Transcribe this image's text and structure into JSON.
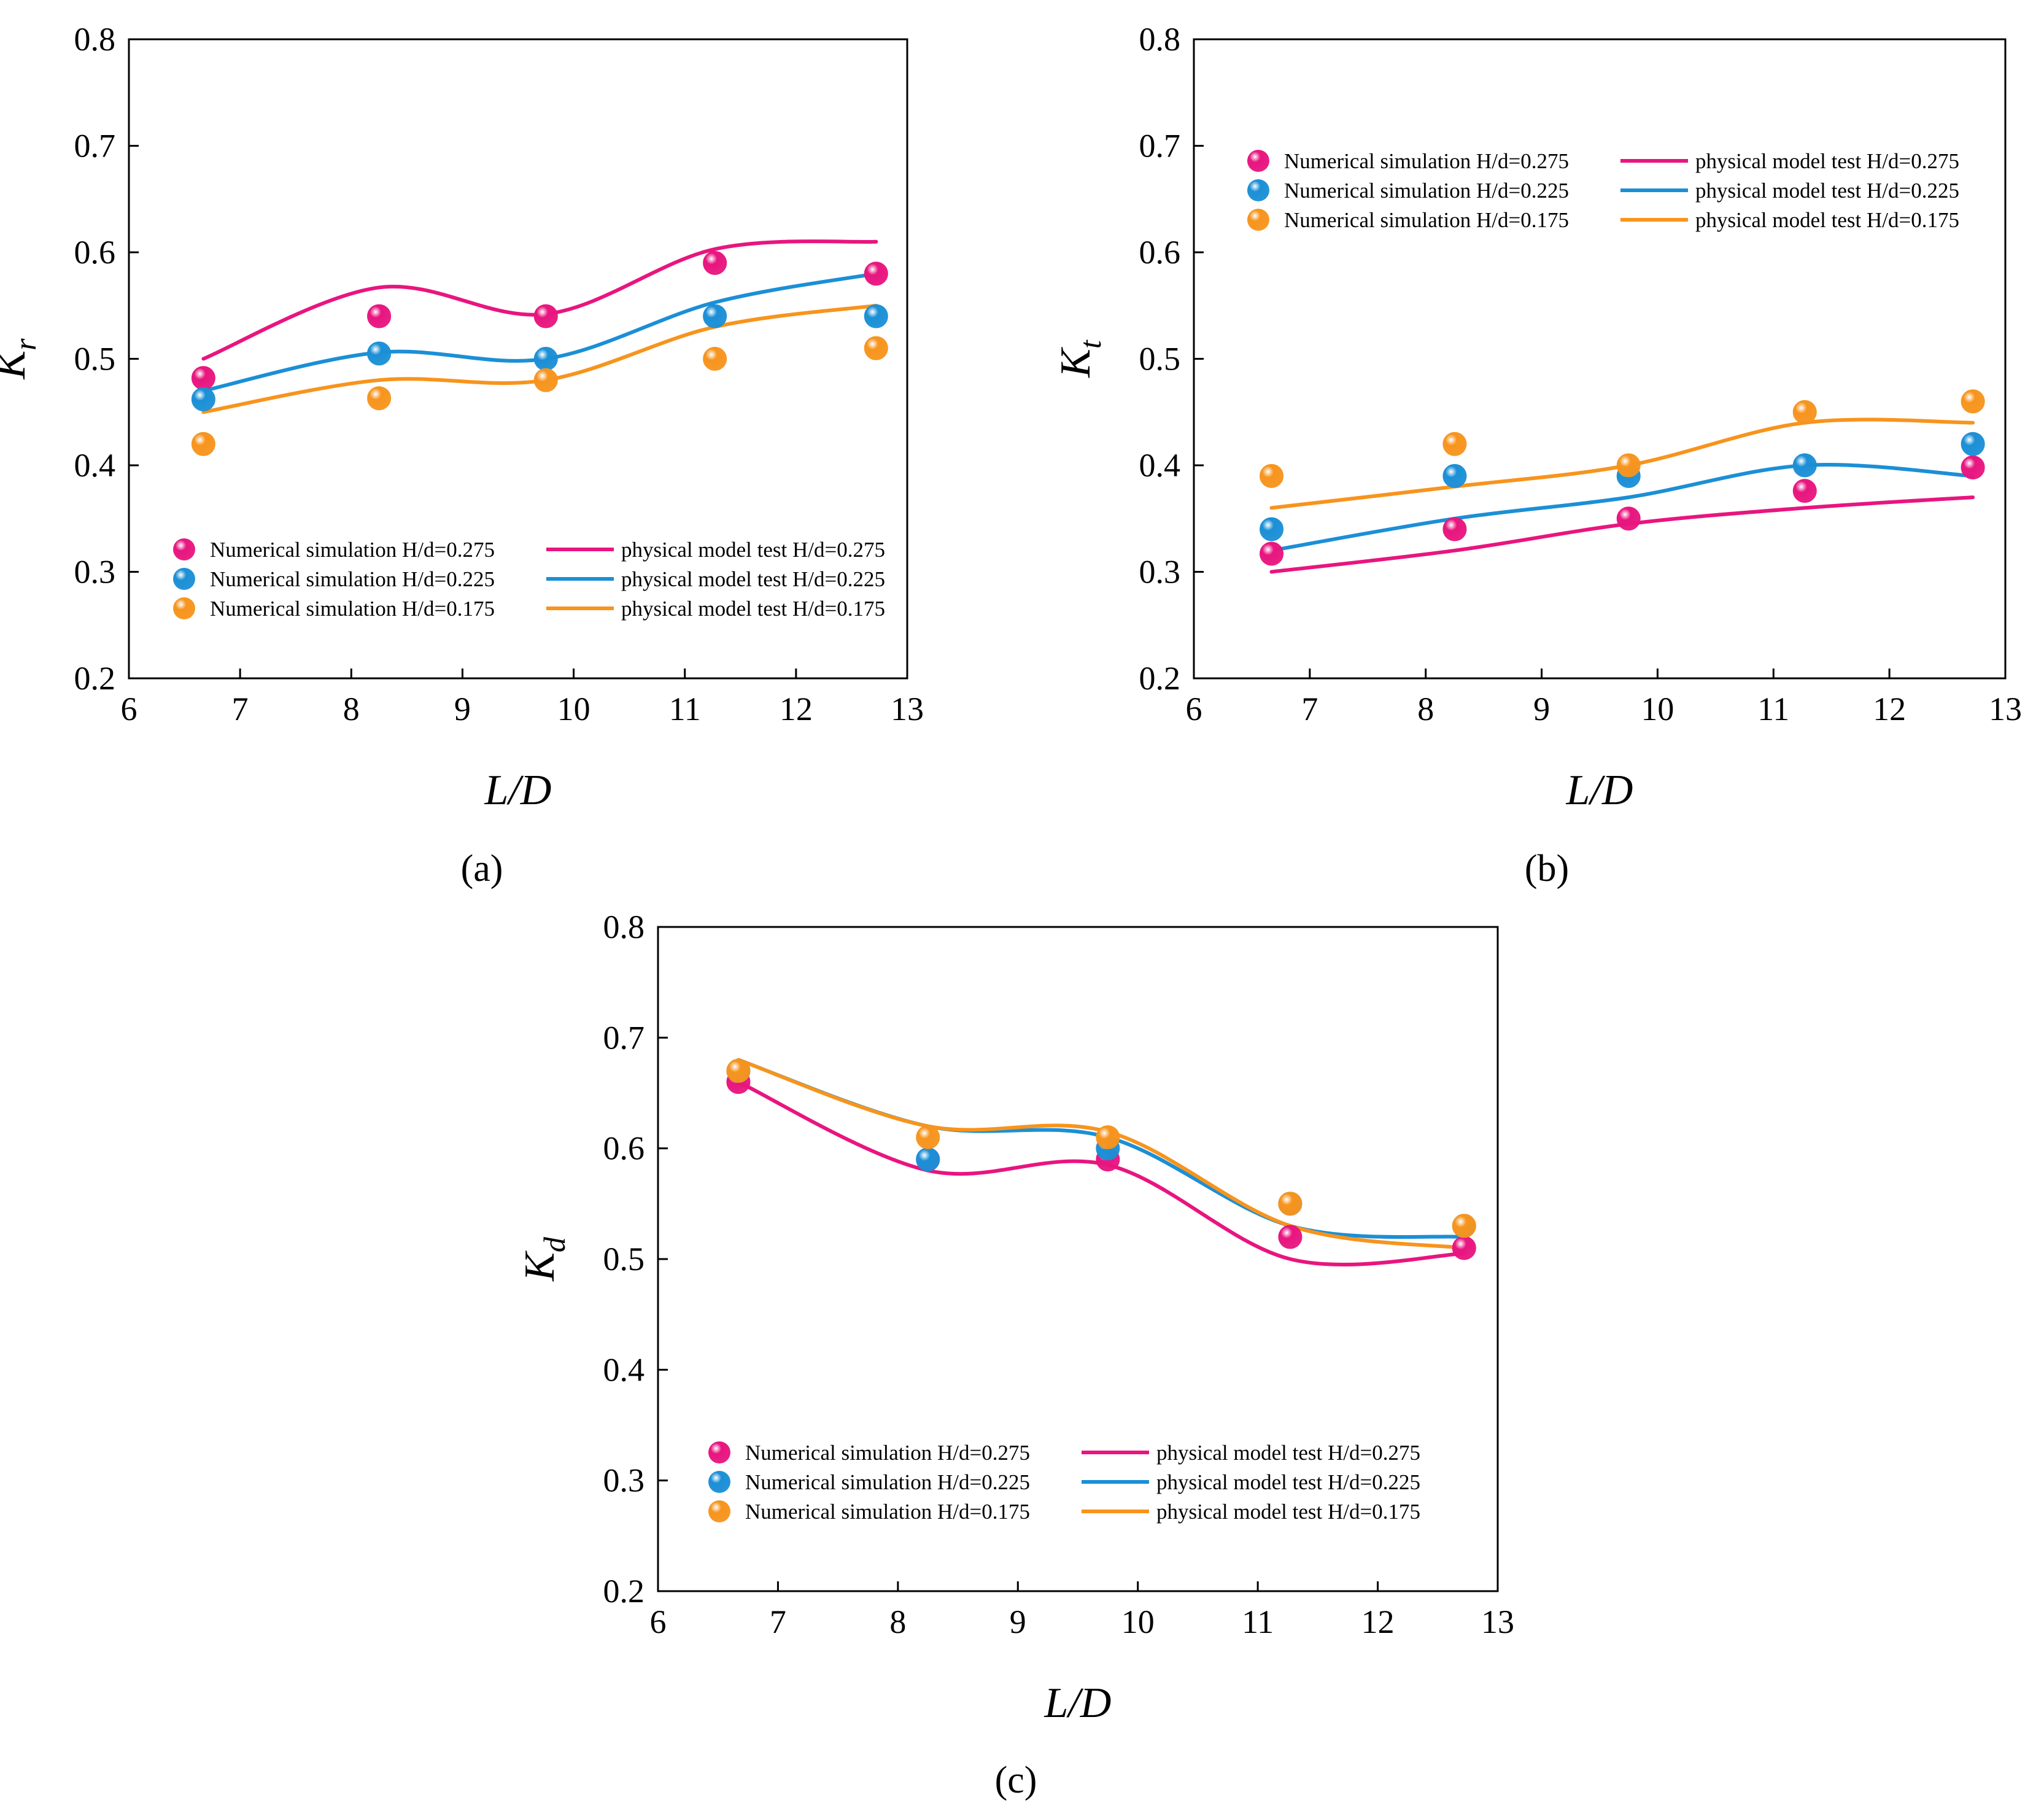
{
  "chart_data": [
    {
      "type": "scatter",
      "panel_label": "(a)",
      "xlabel": "L/D",
      "ylabel_base": "K",
      "ylabel_sub": "r",
      "xlim": [
        6,
        13
      ],
      "ylim": [
        0.2,
        0.8
      ],
      "xticks": [
        "6",
        "7",
        "8",
        "9",
        "10",
        "11",
        "12",
        "13"
      ],
      "yticks": [
        "0.2",
        "0.3",
        "0.4",
        "0.5",
        "0.6",
        "0.7",
        "0.8"
      ],
      "legend_position": "lower-center",
      "x": [
        6.67,
        8.25,
        9.75,
        11.27,
        12.72
      ],
      "series": [
        {
          "name": "Numerical simulation H/d=0.275",
          "kind": "points",
          "color": "#e8157f",
          "values": [
            0.482,
            0.54,
            0.54,
            0.59,
            0.58
          ]
        },
        {
          "name": "Numerical simulation H/d=0.225",
          "kind": "points",
          "color": "#1b8fd6",
          "values": [
            0.462,
            0.505,
            0.5,
            0.54,
            0.54
          ]
        },
        {
          "name": "Numerical simulation H/d=0.175",
          "kind": "points",
          "color": "#f7941d",
          "values": [
            0.42,
            0.463,
            0.48,
            0.5,
            0.51
          ]
        },
        {
          "name": "physical model test H/d=0.275",
          "kind": "line",
          "color": "#e8157f",
          "values": [
            0.5,
            0.567,
            0.542,
            0.603,
            0.61
          ]
        },
        {
          "name": "physical model test H/d=0.225",
          "kind": "line",
          "color": "#1b8fd6",
          "values": [
            0.47,
            0.506,
            0.5,
            0.553,
            0.58
          ]
        },
        {
          "name": "physical model test H/d=0.175",
          "kind": "line",
          "color": "#f7941d",
          "values": [
            0.45,
            0.48,
            0.48,
            0.53,
            0.55
          ]
        }
      ]
    },
    {
      "type": "scatter",
      "panel_label": "(b)",
      "xlabel": "L/D",
      "ylabel_base": "K",
      "ylabel_sub": "t",
      "xlim": [
        6,
        13
      ],
      "ylim": [
        0.2,
        0.8
      ],
      "xticks": [
        "6",
        "7",
        "8",
        "9",
        "10",
        "11",
        "12",
        "13"
      ],
      "yticks": [
        "0.2",
        "0.3",
        "0.4",
        "0.5",
        "0.6",
        "0.7",
        "0.8"
      ],
      "legend_position": "upper-center",
      "x": [
        6.67,
        8.25,
        9.75,
        11.27,
        12.72
      ],
      "series": [
        {
          "name": "Numerical simulation H/d=0.275",
          "kind": "points",
          "color": "#e8157f",
          "values": [
            0.317,
            0.34,
            0.35,
            0.376,
            0.398
          ]
        },
        {
          "name": "Numerical simulation H/d=0.225",
          "kind": "points",
          "color": "#1b8fd6",
          "values": [
            0.34,
            0.39,
            0.39,
            0.4,
            0.42
          ]
        },
        {
          "name": "Numerical simulation H/d=0.175",
          "kind": "points",
          "color": "#f7941d",
          "values": [
            0.39,
            0.42,
            0.4,
            0.45,
            0.46
          ]
        },
        {
          "name": "physical model test H/d=0.275",
          "kind": "line",
          "color": "#e8157f",
          "values": [
            0.3,
            0.32,
            0.345,
            0.36,
            0.37
          ]
        },
        {
          "name": "physical model test H/d=0.225",
          "kind": "line",
          "color": "#1b8fd6",
          "values": [
            0.32,
            0.35,
            0.37,
            0.4,
            0.39
          ]
        },
        {
          "name": "physical model test H/d=0.175",
          "kind": "line",
          "color": "#f7941d",
          "values": [
            0.36,
            0.38,
            0.4,
            0.44,
            0.44
          ]
        }
      ]
    },
    {
      "type": "scatter",
      "panel_label": "(c)",
      "xlabel": "L/D",
      "ylabel_base": "K",
      "ylabel_sub": "d",
      "xlim": [
        6,
        13
      ],
      "ylim": [
        0.2,
        0.8
      ],
      "xticks": [
        "6",
        "7",
        "8",
        "9",
        "10",
        "11",
        "12",
        "13"
      ],
      "yticks": [
        "0.2",
        "0.3",
        "0.4",
        "0.5",
        "0.6",
        "0.7",
        "0.8"
      ],
      "legend_position": "lower-center",
      "x": [
        6.67,
        8.25,
        9.75,
        11.27,
        12.72
      ],
      "series": [
        {
          "name": "Numerical simulation H/d=0.275",
          "kind": "points",
          "color": "#e8157f",
          "values": [
            0.66,
            0.59,
            0.59,
            0.52,
            0.51
          ]
        },
        {
          "name": "Numerical simulation H/d=0.225",
          "kind": "points",
          "color": "#1b8fd6",
          "values": [
            0.67,
            0.59,
            0.6,
            0.55,
            0.53
          ]
        },
        {
          "name": "Numerical simulation H/d=0.175",
          "kind": "points",
          "color": "#f7941d",
          "values": [
            0.67,
            0.61,
            0.61,
            0.55,
            0.53
          ]
        },
        {
          "name": "physical model test H/d=0.275",
          "kind": "line",
          "color": "#e8157f",
          "values": [
            0.66,
            0.58,
            0.585,
            0.5,
            0.505
          ]
        },
        {
          "name": "physical model test H/d=0.225",
          "kind": "line",
          "color": "#1b8fd6",
          "values": [
            0.68,
            0.62,
            0.61,
            0.53,
            0.52
          ]
        },
        {
          "name": "physical model test H/d=0.175",
          "kind": "line",
          "color": "#f7941d",
          "values": [
            0.68,
            0.62,
            0.615,
            0.53,
            0.51
          ]
        }
      ]
    }
  ]
}
